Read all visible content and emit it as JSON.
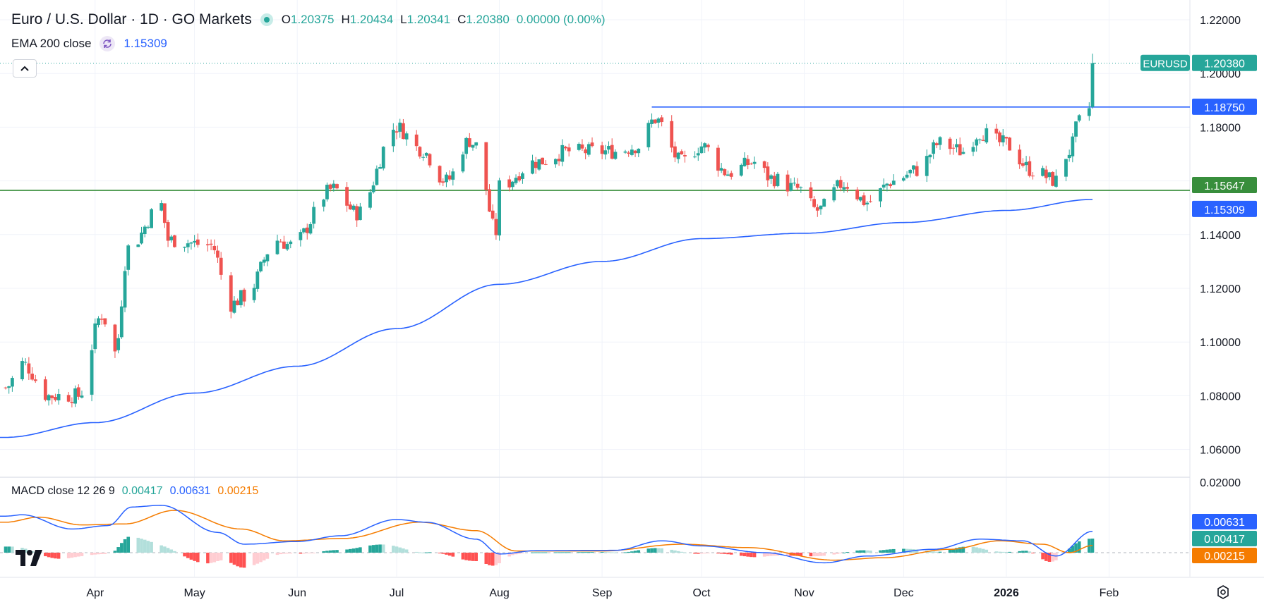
{
  "header": {
    "symbol_title": "Euro / U.S. Dollar · 1D · GO Markets",
    "open_label": "O",
    "open_value": "1.20375",
    "high_label": "H",
    "high_value": "1.20434",
    "low_label": "L",
    "low_value": "1.20341",
    "close_label": "C",
    "close_value": "1.20380",
    "change": "0.00000 (0.00%)"
  },
  "ema_legend": {
    "label": "EMA 200 close",
    "value": "1.15309"
  },
  "macd_legend": {
    "label": "MACD close 12 26 9",
    "histogram": "0.00417",
    "macd": "0.00631",
    "signal": "0.00215"
  },
  "price_axis": {
    "ticks": [
      "1.22000",
      "1.20000",
      "1.18000",
      "1.16000",
      "1.14000",
      "1.12000",
      "1.10000",
      "1.08000",
      "1.06000"
    ],
    "tick_values": [
      1.22,
      1.2,
      1.18,
      1.16,
      1.14,
      1.12,
      1.1,
      1.08,
      1.06
    ],
    "badges": [
      {
        "label": "EURUSD",
        "value": "1.20380",
        "price": 1.2038,
        "color": "#26a69a"
      },
      {
        "value": "1.18750",
        "price": 1.1875,
        "color": "#2962ff"
      },
      {
        "value": "1.15647",
        "price": 1.15647,
        "color": "#388e3c"
      },
      {
        "value": "1.15309",
        "price": 1.15309,
        "color": "#2962ff"
      }
    ]
  },
  "macd_axis": {
    "ticks": [
      "0.02000"
    ],
    "badges": [
      {
        "value": "0.00631",
        "color": "#2962ff"
      },
      {
        "value": "0.00417",
        "color": "#26a69a"
      },
      {
        "value": "0.00215",
        "color": "#f57c00"
      }
    ]
  },
  "time_axis": {
    "labels": [
      "Apr",
      "May",
      "Jun",
      "Jul",
      "Aug",
      "Sep",
      "Oct",
      "Nov",
      "Dec",
      "2026",
      "Feb"
    ]
  },
  "colors": {
    "up": "#26a69a",
    "down": "#ef5350",
    "ema": "#2962ff",
    "macd": "#2962ff",
    "signal": "#f57c00",
    "hline_blue": "#2962ff",
    "hline_green": "#388e3c"
  },
  "icons": {
    "collapse": "chevron-up-icon",
    "ema_settings": "refresh-icon",
    "settings": "gear-icon",
    "logo": "tradingview-logo"
  },
  "chart_data": {
    "type": "candlestick",
    "symbol": "EURUSD",
    "timeframe": "1D",
    "ylim": [
      1.05,
      1.22
    ],
    "horizontal_lines": [
      1.1875,
      1.15647
    ],
    "ema_period": 200,
    "anchors": [
      {
        "date": "2025-03-05",
        "price": 1.083
      },
      {
        "date": "2025-03-10",
        "price": 1.092
      },
      {
        "date": "2025-03-18",
        "price": 1.08
      },
      {
        "date": "2025-03-27",
        "price": 1.08
      },
      {
        "date": "2025-04-03",
        "price": 1.11
      },
      {
        "date": "2025-04-07",
        "price": 1.096
      },
      {
        "date": "2025-04-11",
        "price": 1.135
      },
      {
        "date": "2025-04-21",
        "price": 1.151
      },
      {
        "date": "2025-04-23",
        "price": 1.138
      },
      {
        "date": "2025-05-06",
        "price": 1.136
      },
      {
        "date": "2025-05-12",
        "price": 1.114
      },
      {
        "date": "2025-05-16",
        "price": 1.117
      },
      {
        "date": "2025-05-26",
        "price": 1.138
      },
      {
        "date": "2025-05-30",
        "price": 1.136
      },
      {
        "date": "2025-06-12",
        "price": 1.157
      },
      {
        "date": "2025-06-19",
        "price": 1.148
      },
      {
        "date": "2025-07-01",
        "price": 1.18
      },
      {
        "date": "2025-07-08",
        "price": 1.172
      },
      {
        "date": "2025-07-16",
        "price": 1.16
      },
      {
        "date": "2025-07-23",
        "price": 1.175
      },
      {
        "date": "2025-07-25",
        "price": 1.173
      },
      {
        "date": "2025-07-31",
        "price": 1.141
      },
      {
        "date": "2025-08-01",
        "price": 1.158
      },
      {
        "date": "2025-08-12",
        "price": 1.167
      },
      {
        "date": "2025-08-22",
        "price": 1.171
      },
      {
        "date": "2025-09-05",
        "price": 1.171
      },
      {
        "date": "2025-09-12",
        "price": 1.173
      },
      {
        "date": "2025-09-17",
        "price": 1.183
      },
      {
        "date": "2025-09-25",
        "price": 1.167
      },
      {
        "date": "2025-10-01",
        "price": 1.173
      },
      {
        "date": "2025-10-09",
        "price": 1.163
      },
      {
        "date": "2025-10-17",
        "price": 1.167
      },
      {
        "date": "2025-10-22",
        "price": 1.161
      },
      {
        "date": "2025-10-30",
        "price": 1.157
      },
      {
        "date": "2025-11-05",
        "price": 1.149
      },
      {
        "date": "2025-11-13",
        "price": 1.159
      },
      {
        "date": "2025-11-20",
        "price": 1.152
      },
      {
        "date": "2025-11-28",
        "price": 1.16
      },
      {
        "date": "2025-12-05",
        "price": 1.164
      },
      {
        "date": "2025-12-12",
        "price": 1.174
      },
      {
        "date": "2025-12-19",
        "price": 1.171
      },
      {
        "date": "2025-12-24",
        "price": 1.178
      },
      {
        "date": "2025-12-31",
        "price": 1.174
      },
      {
        "date": "2026-01-09",
        "price": 1.164
      },
      {
        "date": "2026-01-16",
        "price": 1.16
      },
      {
        "date": "2026-01-20",
        "price": 1.171
      },
      {
        "date": "2026-01-23",
        "price": 1.182
      },
      {
        "date": "2026-01-26",
        "price": 1.187
      },
      {
        "date": "2026-01-27",
        "price": 1.2038
      }
    ],
    "ema200": [
      {
        "date": "2025-03-05",
        "value": 1.0645
      },
      {
        "date": "2025-04-01",
        "value": 1.07
      },
      {
        "date": "2025-05-01",
        "value": 1.081
      },
      {
        "date": "2025-06-01",
        "value": 1.091
      },
      {
        "date": "2025-07-01",
        "value": 1.105
      },
      {
        "date": "2025-08-01",
        "value": 1.1215
      },
      {
        "date": "2025-09-01",
        "value": 1.13
      },
      {
        "date": "2025-10-01",
        "value": 1.1385
      },
      {
        "date": "2025-11-01",
        "value": 1.1405
      },
      {
        "date": "2025-12-01",
        "value": 1.1445
      },
      {
        "date": "2026-01-01",
        "value": 1.149
      },
      {
        "date": "2026-01-27",
        "value": 1.15309
      }
    ],
    "macd": {
      "fast": 12,
      "slow": 26,
      "signal": 9,
      "macd_line": [
        {
          "date": "2025-03-05",
          "value": 0.0108
        },
        {
          "date": "2025-03-10",
          "value": 0.0112
        },
        {
          "date": "2025-03-25",
          "value": 0.007
        },
        {
          "date": "2025-04-05",
          "value": 0.008
        },
        {
          "date": "2025-04-12",
          "value": 0.0135
        },
        {
          "date": "2025-04-21",
          "value": 0.014
        },
        {
          "date": "2025-05-08",
          "value": 0.006
        },
        {
          "date": "2025-05-16",
          "value": 0.0025
        },
        {
          "date": "2025-06-01",
          "value": 0.0033
        },
        {
          "date": "2025-06-14",
          "value": 0.005
        },
        {
          "date": "2025-07-01",
          "value": 0.0098
        },
        {
          "date": "2025-07-10",
          "value": 0.009
        },
        {
          "date": "2025-07-25",
          "value": 0.004
        },
        {
          "date": "2025-08-01",
          "value": -0.0004
        },
        {
          "date": "2025-08-12",
          "value": 0.0006
        },
        {
          "date": "2025-09-05",
          "value": 0.0007
        },
        {
          "date": "2025-09-19",
          "value": 0.0035
        },
        {
          "date": "2025-10-01",
          "value": 0.002
        },
        {
          "date": "2025-10-20",
          "value": 0.0
        },
        {
          "date": "2025-11-07",
          "value": -0.003
        },
        {
          "date": "2025-11-20",
          "value": -0.001
        },
        {
          "date": "2025-12-10",
          "value": 0.001
        },
        {
          "date": "2025-12-24",
          "value": 0.004
        },
        {
          "date": "2026-01-06",
          "value": 0.0035
        },
        {
          "date": "2026-01-16",
          "value": -0.001
        },
        {
          "date": "2026-01-27",
          "value": 0.00631
        }
      ],
      "signal_line": [
        {
          "date": "2025-03-05",
          "value": 0.009
        },
        {
          "date": "2025-03-15",
          "value": 0.0105
        },
        {
          "date": "2025-03-28",
          "value": 0.0082
        },
        {
          "date": "2025-04-10",
          "value": 0.0085
        },
        {
          "date": "2025-04-25",
          "value": 0.0125
        },
        {
          "date": "2025-05-15",
          "value": 0.007
        },
        {
          "date": "2025-05-28",
          "value": 0.0035
        },
        {
          "date": "2025-06-15",
          "value": 0.0042
        },
        {
          "date": "2025-07-08",
          "value": 0.009
        },
        {
          "date": "2025-07-25",
          "value": 0.0065
        },
        {
          "date": "2025-08-06",
          "value": 0.0005
        },
        {
          "date": "2025-09-01",
          "value": 0.0005
        },
        {
          "date": "2025-09-25",
          "value": 0.0025
        },
        {
          "date": "2025-10-15",
          "value": 0.0015
        },
        {
          "date": "2025-11-10",
          "value": -0.0022
        },
        {
          "date": "2025-11-25",
          "value": -0.0015
        },
        {
          "date": "2025-12-15",
          "value": 0.001
        },
        {
          "date": "2025-12-30",
          "value": 0.0035
        },
        {
          "date": "2026-01-12",
          "value": 0.0025
        },
        {
          "date": "2026-01-20",
          "value": 0.0
        },
        {
          "date": "2026-01-27",
          "value": 0.00215
        }
      ],
      "ylim": [
        -0.004,
        0.02
      ]
    }
  }
}
